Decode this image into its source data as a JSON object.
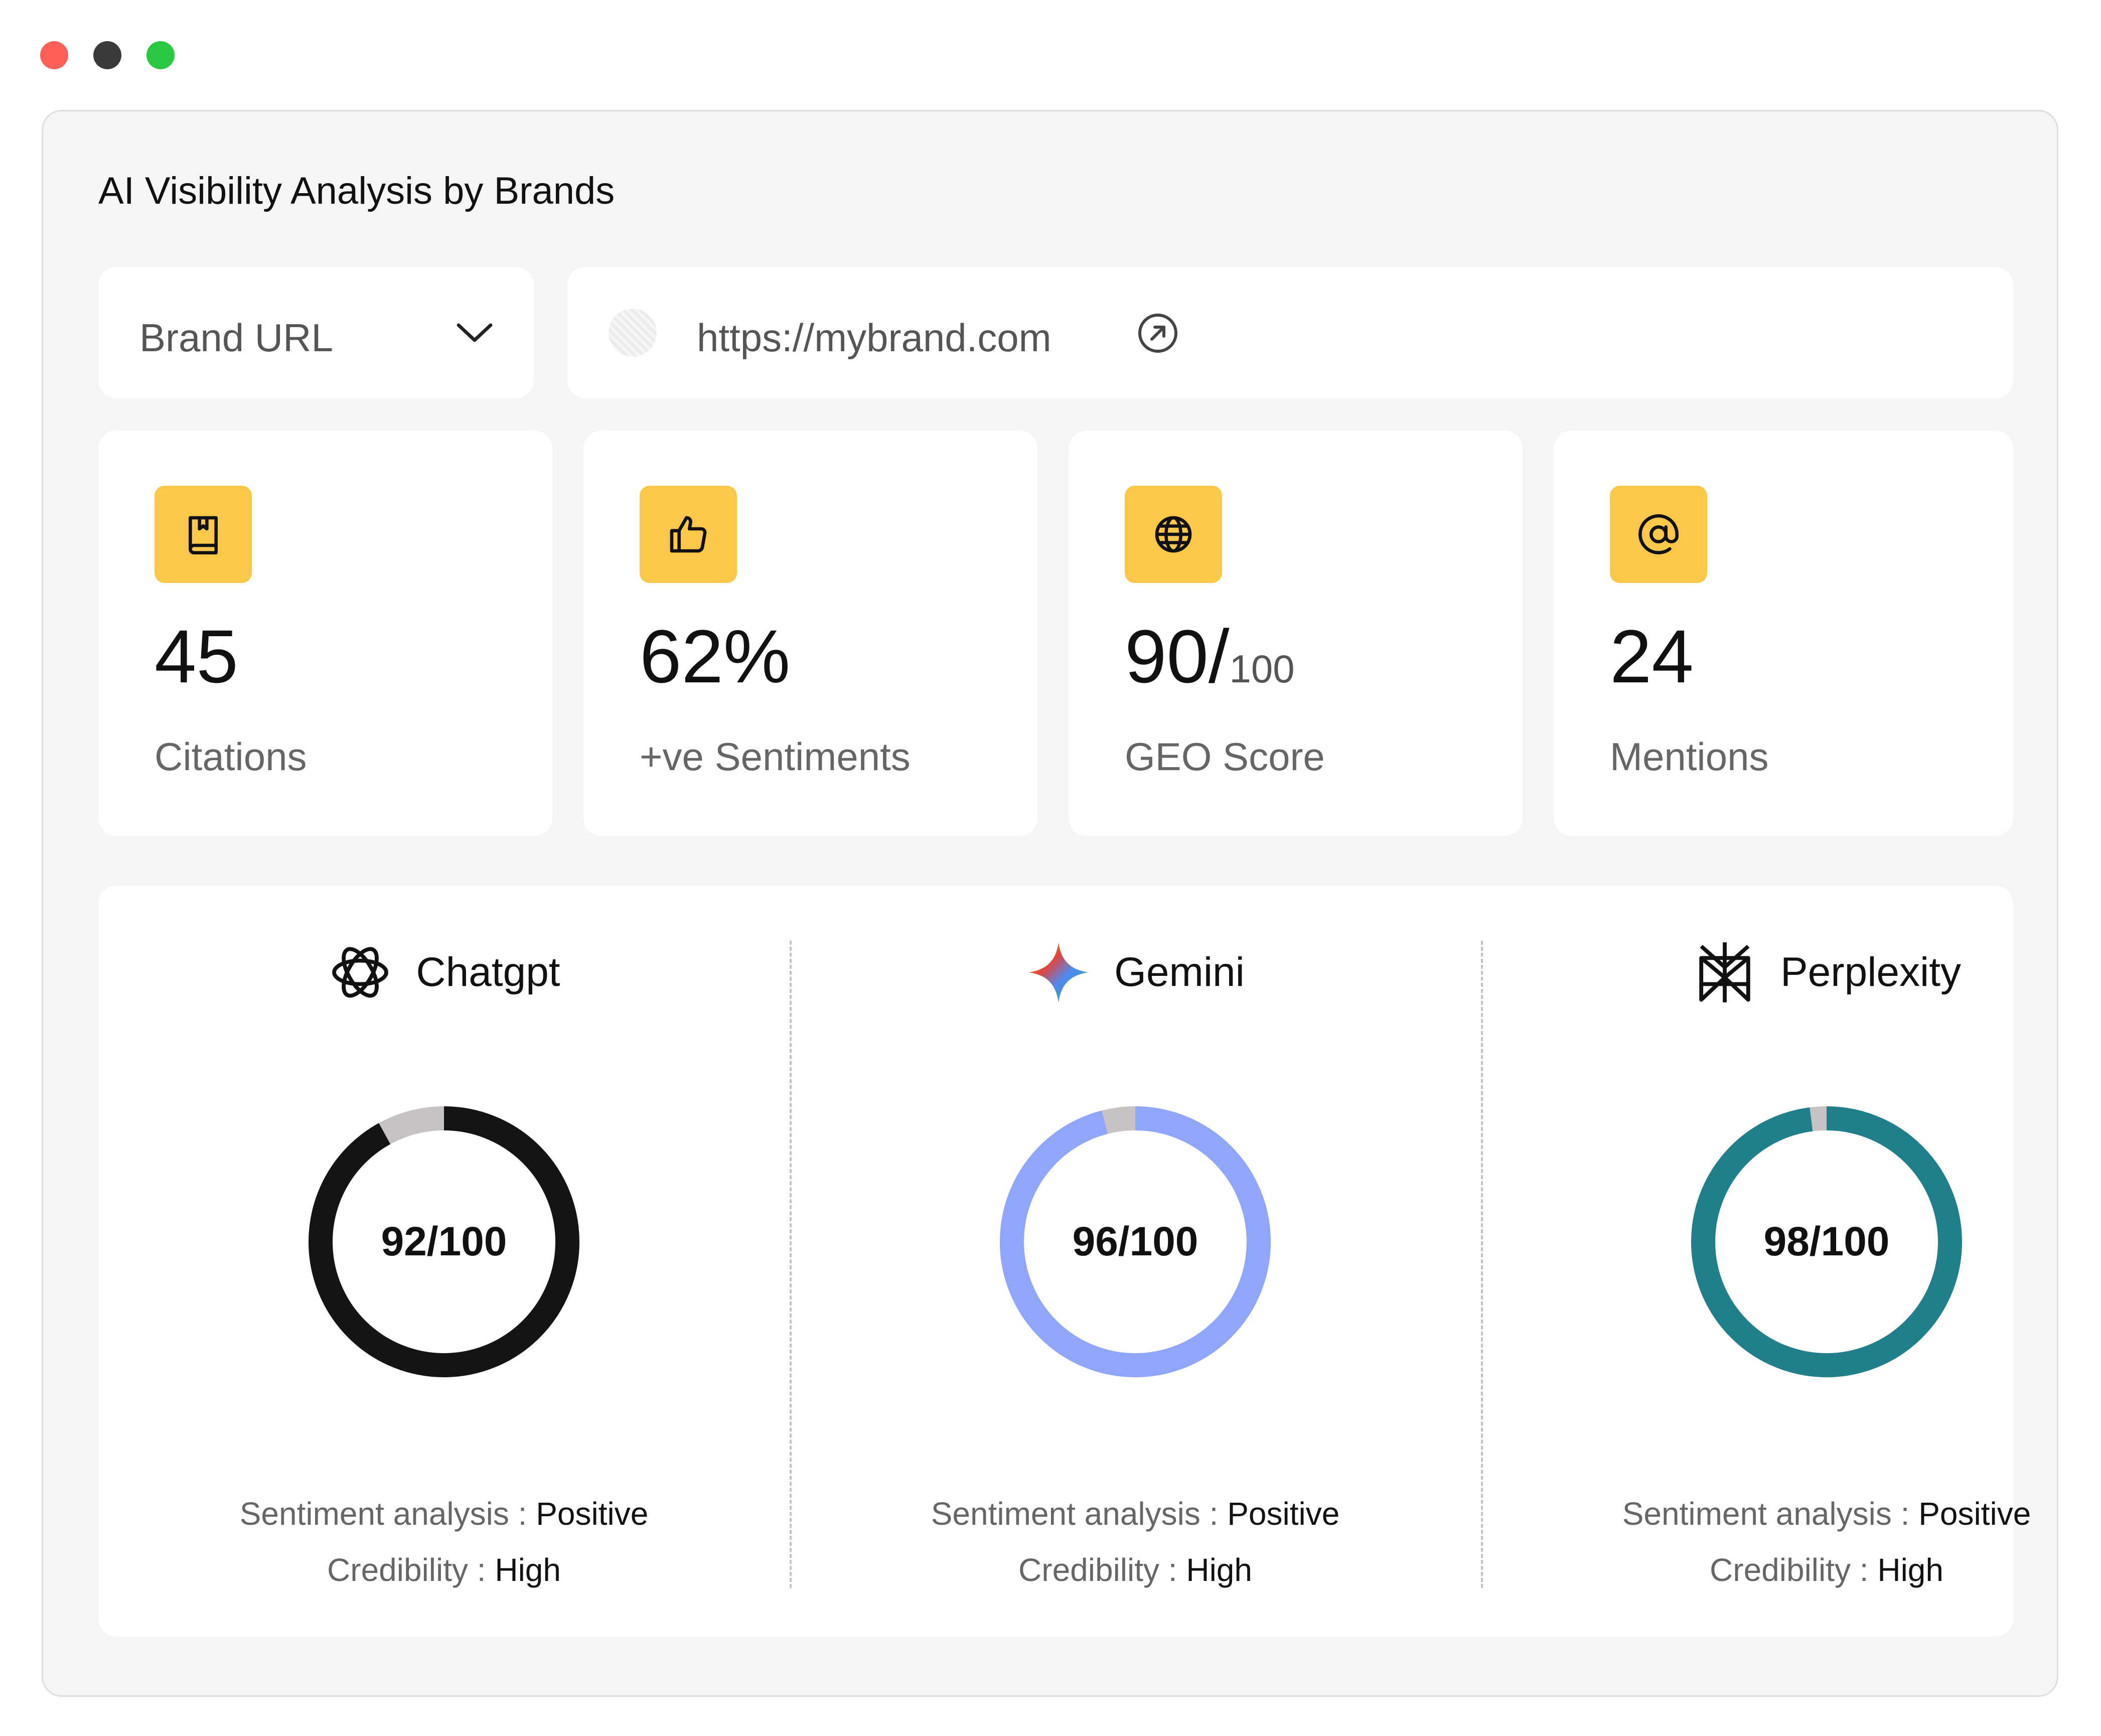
{
  "window": {
    "controls": [
      {
        "name": "close",
        "color": "#fe5f57"
      },
      {
        "name": "minimize",
        "color": "#3a3a3a"
      },
      {
        "name": "maximize",
        "color": "#28c840"
      }
    ]
  },
  "title": "AI Visibility Analysis by Brands",
  "brand_select": {
    "label": "Brand URL",
    "icon": "chevron-down-icon"
  },
  "url_box": {
    "url": "https://mybrand.com",
    "icon": "external-link-icon"
  },
  "stats": [
    {
      "icon": "book-icon",
      "value": "45",
      "suffix": "",
      "caption": "Citations"
    },
    {
      "icon": "thumbs-up-icon",
      "value": "62%",
      "suffix": "",
      "caption": "+ve Sentiments"
    },
    {
      "icon": "globe-icon",
      "value": "90/",
      "suffix": "100",
      "caption": "GEO Score"
    },
    {
      "icon": "at-sign-icon",
      "value": "24",
      "suffix": "",
      "caption": "Mentions"
    }
  ],
  "accent_color": "#fdc84a",
  "models": [
    {
      "name": "Chatgpt",
      "icon": "chatgpt-logo-icon",
      "score": "92/100",
      "score_value": 92,
      "score_max": 100,
      "ring_color": "#141414",
      "remainder_color": "#c8c3c3",
      "sentiment_label": "Sentiment analysis : ",
      "sentiment_value": "Positive",
      "credibility_label": "Credibility : ",
      "credibility_value": "High"
    },
    {
      "name": "Gemini",
      "icon": "gemini-logo-icon",
      "score": "96/100",
      "score_value": 96,
      "score_max": 100,
      "ring_color": "#8fa6fb",
      "remainder_color": "#c8c3c3",
      "sentiment_label": "Sentiment analysis : ",
      "sentiment_value": "Positive",
      "credibility_label": "Credibility : ",
      "credibility_value": "High"
    },
    {
      "name": "Perplexity",
      "icon": "perplexity-logo-icon",
      "score": "98/100",
      "score_value": 98,
      "score_max": 100,
      "ring_color": "#217f8c",
      "remainder_color": "#c8c3c3",
      "sentiment_label": "Sentiment analysis : ",
      "sentiment_value": "Positive",
      "credibility_label": "Credibility : ",
      "credibility_value": "High"
    }
  ]
}
